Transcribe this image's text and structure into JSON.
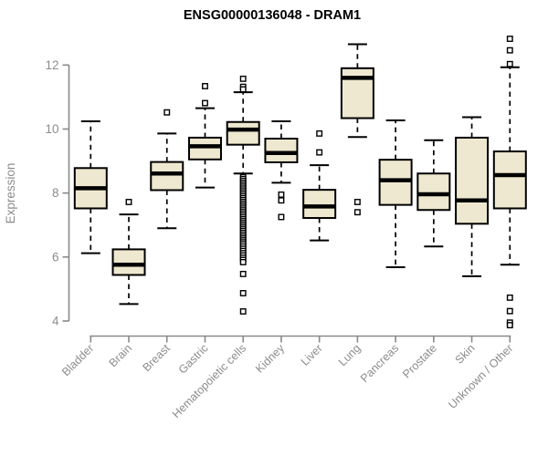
{
  "title": "ENSG00000136048 - DRAM1",
  "chart_data": {
    "type": "boxplot",
    "title": "ENSG00000136048 - DRAM1",
    "xlabel": "",
    "ylabel": "Expression",
    "ylim": [
      4,
      12
    ],
    "yticks": [
      4,
      6,
      8,
      10,
      12
    ],
    "grid": false,
    "legend": false,
    "categories": [
      "Bladder",
      "Brain",
      "Breast",
      "Gastric",
      "Hematopoietic cells",
      "Kidney",
      "Liver",
      "Lung",
      "Pancreas",
      "Prostate",
      "Skin",
      "Unknown / Other"
    ],
    "series": [
      {
        "name": "Bladder",
        "low": 6.12,
        "q1": 7.52,
        "median": 8.15,
        "q3": 8.78,
        "high": 10.24,
        "outliers": []
      },
      {
        "name": "Brain",
        "low": 4.53,
        "q1": 5.44,
        "median": 5.76,
        "q3": 6.24,
        "high": 7.33,
        "outliers": [
          7.72
        ]
      },
      {
        "name": "Breast",
        "low": 6.9,
        "q1": 8.09,
        "median": 8.61,
        "q3": 8.97,
        "high": 9.86,
        "outliers": [
          10.52
        ]
      },
      {
        "name": "Gastric",
        "low": 8.17,
        "q1": 9.05,
        "median": 9.46,
        "q3": 9.73,
        "high": 10.65,
        "outliers": [
          10.81,
          11.34
        ]
      },
      {
        "name": "Hematopoietic cells",
        "low": 8.61,
        "q1": 9.51,
        "median": 9.98,
        "q3": 10.22,
        "high": 11.15,
        "outliers": [
          11.57,
          11.32,
          11.24,
          8.5,
          8.44,
          8.38,
          8.32,
          8.26,
          8.2,
          8.14,
          8.08,
          8.02,
          7.96,
          7.9,
          7.84,
          7.78,
          7.72,
          7.66,
          7.6,
          7.54,
          7.48,
          7.42,
          7.36,
          7.3,
          7.24,
          7.18,
          7.12,
          7.06,
          7.0,
          6.94,
          6.88,
          6.82,
          6.76,
          6.7,
          6.64,
          6.58,
          6.52,
          6.46,
          6.4,
          6.33,
          6.26,
          6.19,
          6.12,
          6.05,
          5.98,
          5.91,
          5.84,
          5.47,
          4.87,
          4.3
        ]
      },
      {
        "name": "Kidney",
        "low": 8.32,
        "q1": 8.96,
        "median": 9.25,
        "q3": 9.7,
        "high": 10.24,
        "outliers": [
          7.95,
          7.77,
          7.25
        ]
      },
      {
        "name": "Liver",
        "low": 6.52,
        "q1": 7.22,
        "median": 7.58,
        "q3": 8.1,
        "high": 8.87,
        "outliers": [
          9.86,
          9.27
        ]
      },
      {
        "name": "Lung",
        "low": 9.75,
        "q1": 10.34,
        "median": 11.6,
        "q3": 11.9,
        "high": 12.65,
        "outliers": [
          7.72,
          7.4
        ]
      },
      {
        "name": "Pancreas",
        "low": 5.68,
        "q1": 7.63,
        "median": 8.4,
        "q3": 9.04,
        "high": 10.27,
        "outliers": []
      },
      {
        "name": "Prostate",
        "low": 6.33,
        "q1": 7.47,
        "median": 7.96,
        "q3": 8.61,
        "high": 9.65,
        "outliers": []
      },
      {
        "name": "Skin",
        "low": 5.4,
        "q1": 7.04,
        "median": 7.77,
        "q3": 9.73,
        "high": 10.37,
        "outliers": []
      },
      {
        "name": "Unknown / Other",
        "low": 5.76,
        "q1": 7.52,
        "median": 8.56,
        "q3": 9.3,
        "high": 11.93,
        "outliers": [
          12.82,
          12.46,
          12.03,
          4.73,
          4.31,
          3.95,
          3.87
        ]
      }
    ],
    "colors": {
      "box_fill": "#EDE8CF",
      "box_stroke": "#000000",
      "median": "#000000",
      "whisker": "#000000",
      "axis": "#898989",
      "tick_label": "#8c8c8c",
      "title": "#000000",
      "background": "#ffffff"
    }
  }
}
